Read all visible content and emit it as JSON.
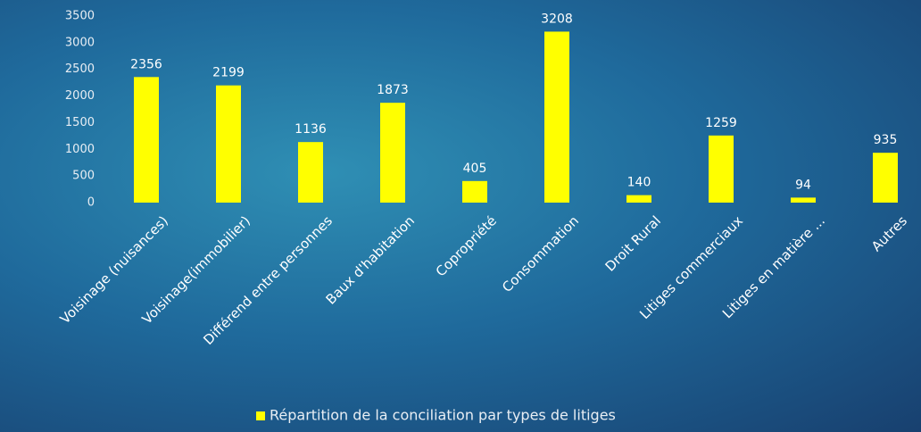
{
  "chart_data": {
    "type": "bar",
    "categories": [
      "Voisinage (nuisances)",
      "Voisinage(immobilier)",
      "Différend entre personnes",
      "Baux d'habitation",
      "Copropriété",
      "Consommation",
      "Droit Rural",
      "Litiges commerciaux",
      "Litiges en matière ...",
      "Autres"
    ],
    "series": [
      {
        "name": "Répartition de la conciliation par types de litiges",
        "color": "#ffff00",
        "values": [
          2356,
          2199,
          1136,
          1873,
          405,
          3208,
          140,
          1259,
          94,
          935
        ]
      }
    ],
    "ylim": [
      0,
      3500
    ],
    "yticks": [
      0,
      500,
      1000,
      1500,
      2000,
      2500,
      3000,
      3500
    ],
    "legend": "bottom"
  }
}
